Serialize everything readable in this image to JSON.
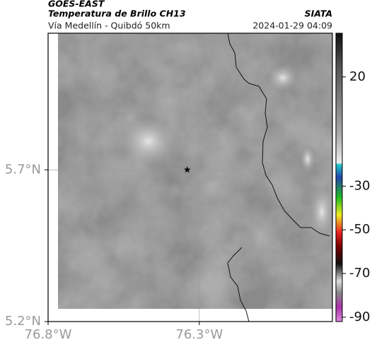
{
  "header": {
    "title": "GOES-EAST",
    "subtitle": "Temperatura de Brillo CH13",
    "source": "SIATA",
    "route": "Vía Medellín - Quibdó 50km",
    "datetime": "2024-01-29 04:09"
  },
  "map": {
    "xlim": [
      -76.8,
      -75.86
    ],
    "ylim": [
      5.2,
      6.15
    ],
    "xticks": [
      {
        "value": -76.8,
        "label": "76.8°W"
      },
      {
        "value": -76.3,
        "label": "76.3°W"
      }
    ],
    "yticks": [
      {
        "value": 5.2,
        "label": "5.2°N"
      },
      {
        "value": 5.7,
        "label": "5.7°N"
      }
    ],
    "marker": {
      "lon": -76.34,
      "lat": 5.7
    }
  },
  "colorbar": {
    "lim": [
      -92,
      40
    ],
    "ticks": [
      20,
      -30,
      -50,
      -70,
      -90
    ]
  }
}
